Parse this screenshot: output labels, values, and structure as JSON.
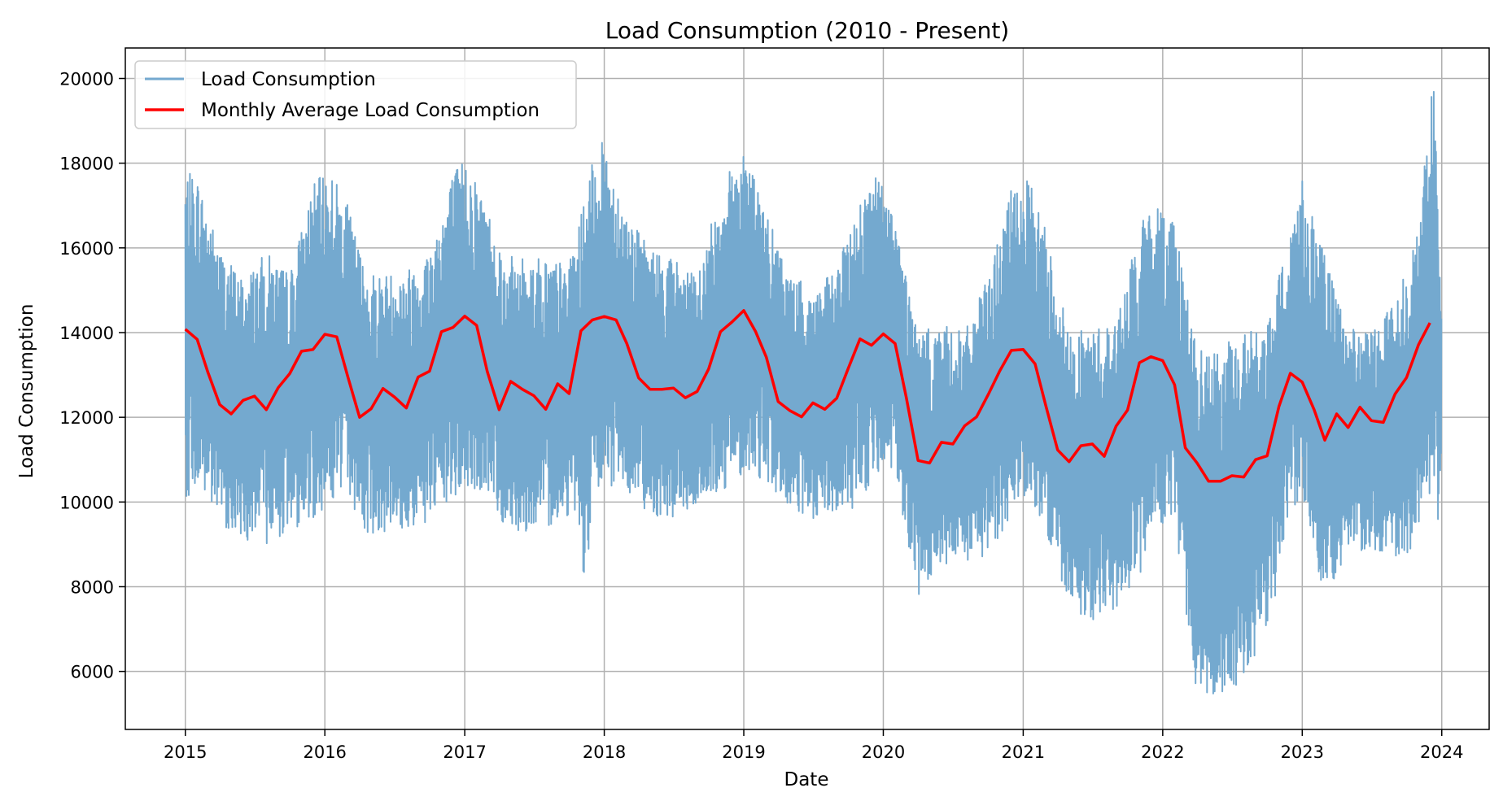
{
  "chart_data": {
    "type": "line",
    "title": "Load Consumption (2010 - Present)",
    "xlabel": "Date",
    "ylabel": "Load Consumption",
    "xlim": [
      "2014-07-28",
      "2024-05-04"
    ],
    "ylim": [
      4630,
      20720
    ],
    "x_ticks": [
      "2015",
      "2016",
      "2017",
      "2018",
      "2019",
      "2020",
      "2021",
      "2022",
      "2023",
      "2024"
    ],
    "y_ticks": [
      6000,
      8000,
      10000,
      12000,
      14000,
      16000,
      18000,
      20000
    ],
    "grid": true,
    "legend": "top-left",
    "series": [
      {
        "name": "Load Consumption",
        "color": "#74a9cf",
        "style": "daily values, dense oscillating line",
        "x_range": [
          "2015-01-01",
          "2023-12-31"
        ],
        "y_range": [
          5350,
          20100
        ],
        "upper_envelope": {
          "x": [
            "2015-01-01",
            "2015-02-01",
            "2015-04-01",
            "2015-06-01",
            "2015-08-01",
            "2015-10-01",
            "2015-12-01",
            "2016-01-15",
            "2016-03-01",
            "2016-04-15",
            "2016-06-01",
            "2016-08-01",
            "2016-10-01",
            "2016-12-01",
            "2017-01-05",
            "2017-03-01",
            "2017-04-15",
            "2017-06-01",
            "2017-08-01",
            "2017-10-01",
            "2017-12-01",
            "2018-01-01",
            "2018-03-01",
            "2018-05-01",
            "2018-07-01",
            "2018-09-01",
            "2018-11-01",
            "2019-01-01",
            "2019-03-01",
            "2019-05-01",
            "2019-07-01",
            "2019-09-01",
            "2019-11-01",
            "2019-12-15",
            "2020-02-01",
            "2020-04-01",
            "2020-06-01",
            "2020-08-01",
            "2020-10-01",
            "2020-12-01",
            "2021-01-15",
            "2021-03-01",
            "2021-05-01",
            "2021-07-01",
            "2021-09-01",
            "2021-11-01",
            "2021-12-10",
            "2022-02-01",
            "2022-04-01",
            "2022-06-01",
            "2022-08-01",
            "2022-10-01",
            "2022-12-01",
            "2023-01-01",
            "2023-03-01",
            "2023-05-01",
            "2023-07-01",
            "2023-09-01",
            "2023-11-01",
            "2023-12-10",
            "2023-12-31"
          ],
          "y": [
            17800,
            17700,
            16000,
            15300,
            15900,
            15400,
            17500,
            17900,
            17000,
            15500,
            15400,
            15500,
            16000,
            17800,
            18200,
            17000,
            15800,
            15800,
            15800,
            15600,
            18000,
            18600,
            16800,
            16000,
            15800,
            15300,
            17400,
            18500,
            16800,
            15400,
            15000,
            15500,
            17200,
            17800,
            16800,
            14000,
            14200,
            14000,
            15300,
            17400,
            17600,
            16500,
            14000,
            14100,
            14300,
            16500,
            17100,
            16800,
            13600,
            13600,
            14100,
            14100,
            16500,
            17700,
            15800,
            14100,
            14000,
            14800,
            16500,
            20100,
            15500
          ]
        },
        "lower_envelope": {
          "x": [
            "2015-01-01",
            "2015-02-01",
            "2015-04-01",
            "2015-06-01",
            "2015-08-01",
            "2015-10-01",
            "2015-12-01",
            "2016-01-15",
            "2016-03-01",
            "2016-04-15",
            "2016-06-01",
            "2016-08-01",
            "2016-10-01",
            "2016-12-01",
            "2017-01-05",
            "2017-03-01",
            "2017-04-15",
            "2017-06-01",
            "2017-08-01",
            "2017-10-01",
            "2017-10-25",
            "2017-11-15",
            "2017-12-01",
            "2018-01-01",
            "2018-03-01",
            "2018-05-01",
            "2018-07-01",
            "2018-09-01",
            "2018-11-01",
            "2019-01-01",
            "2019-03-01",
            "2019-05-01",
            "2019-07-01",
            "2019-09-01",
            "2019-11-01",
            "2019-12-15",
            "2020-02-01",
            "2020-04-01",
            "2020-06-01",
            "2020-08-01",
            "2020-10-01",
            "2020-12-01",
            "2021-01-15",
            "2021-03-01",
            "2021-05-01",
            "2021-07-01",
            "2021-09-01",
            "2021-11-01",
            "2021-12-10",
            "2022-02-01",
            "2022-04-01",
            "2022-06-01",
            "2022-08-01",
            "2022-10-01",
            "2022-12-01",
            "2023-01-01",
            "2023-03-01",
            "2023-05-01",
            "2023-07-01",
            "2023-09-01",
            "2023-11-01",
            "2023-12-10",
            "2023-12-31"
          ],
          "y": [
            10100,
            10300,
            9500,
            9100,
            9000,
            9300,
            9600,
            10000,
            10200,
            9200,
            9300,
            9300,
            9500,
            10000,
            10200,
            10200,
            9400,
            9300,
            9400,
            9700,
            9700,
            7500,
            9900,
            10300,
            10300,
            9700,
            9600,
            9900,
            10200,
            10700,
            10500,
            9800,
            9500,
            9700,
            9900,
            10700,
            10500,
            7700,
            8400,
            8500,
            8700,
            9700,
            10300,
            9200,
            7500,
            7200,
            7500,
            8100,
            9600,
            9300,
            5400,
            5500,
            5700,
            6800,
            9500,
            10200,
            7600,
            8800,
            8900,
            8600,
            9000,
            10500,
            8400
          ]
        }
      },
      {
        "name": "Monthly Average Load Consumption",
        "color": "#ff0000",
        "x": [
          "2015-01",
          "2015-02",
          "2015-03",
          "2015-04",
          "2015-05",
          "2015-06",
          "2015-07",
          "2015-08",
          "2015-09",
          "2015-10",
          "2015-11",
          "2015-12",
          "2016-01",
          "2016-02",
          "2016-03",
          "2016-04",
          "2016-05",
          "2016-06",
          "2016-07",
          "2016-08",
          "2016-09",
          "2016-10",
          "2016-11",
          "2016-12",
          "2017-01",
          "2017-02",
          "2017-03",
          "2017-04",
          "2017-05",
          "2017-06",
          "2017-07",
          "2017-08",
          "2017-09",
          "2017-10",
          "2017-11",
          "2017-12",
          "2018-01",
          "2018-02",
          "2018-03",
          "2018-04",
          "2018-05",
          "2018-06",
          "2018-07",
          "2018-08",
          "2018-09",
          "2018-10",
          "2018-11",
          "2018-12",
          "2019-01",
          "2019-02",
          "2019-03",
          "2019-04",
          "2019-05",
          "2019-06",
          "2019-07",
          "2019-08",
          "2019-09",
          "2019-10",
          "2019-11",
          "2019-12",
          "2020-01",
          "2020-02",
          "2020-03",
          "2020-04",
          "2020-05",
          "2020-06",
          "2020-07",
          "2020-08",
          "2020-09",
          "2020-10",
          "2020-11",
          "2020-12",
          "2021-01",
          "2021-02",
          "2021-03",
          "2021-04",
          "2021-05",
          "2021-06",
          "2021-07",
          "2021-08",
          "2021-09",
          "2021-10",
          "2021-11",
          "2021-12",
          "2022-01",
          "2022-02",
          "2022-03",
          "2022-04",
          "2022-05",
          "2022-06",
          "2022-07",
          "2022-08",
          "2022-09",
          "2022-10",
          "2022-11",
          "2022-12",
          "2023-01",
          "2023-02",
          "2023-03",
          "2023-04",
          "2023-05",
          "2023-06",
          "2023-07",
          "2023-08",
          "2023-09",
          "2023-10",
          "2023-11",
          "2023-12"
        ],
        "values": [
          14080,
          13840,
          13060,
          12300,
          12080,
          12400,
          12500,
          12180,
          12700,
          13030,
          13560,
          13600,
          13960,
          13900,
          12960,
          12000,
          12200,
          12680,
          12480,
          12220,
          12950,
          13090,
          14020,
          14120,
          14390,
          14170,
          13080,
          12180,
          12850,
          12660,
          12510,
          12190,
          12790,
          12560,
          14040,
          14300,
          14380,
          14300,
          13740,
          12930,
          12660,
          12660,
          12690,
          12460,
          12610,
          13140,
          14020,
          14250,
          14520,
          14020,
          13420,
          12370,
          12160,
          12010,
          12340,
          12190,
          12450,
          13150,
          13850,
          13700,
          13970,
          13740,
          12470,
          10980,
          10920,
          11410,
          11370,
          11800,
          12010,
          12530,
          13100,
          13580,
          13600,
          13260,
          12280,
          11230,
          10950,
          11330,
          11370,
          11080,
          11790,
          12170,
          13290,
          13430,
          13340,
          12770,
          11280,
          10920,
          10490,
          10490,
          10620,
          10590,
          11000,
          11090,
          12250,
          13040,
          12830,
          12180,
          11460,
          12080,
          11760,
          12240,
          11920,
          11880,
          12550,
          12940,
          13710,
          14230
        ]
      }
    ]
  }
}
